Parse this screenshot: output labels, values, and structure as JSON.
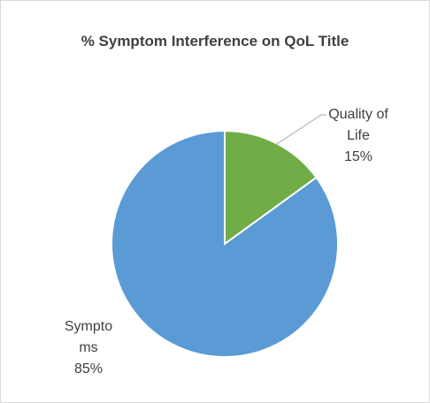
{
  "chart_data": {
    "type": "pie",
    "title": "% Symptom Interference on QoL Title",
    "categories": [
      "Quality of Life",
      "Symptoms"
    ],
    "values": [
      15,
      85
    ],
    "value_labels": [
      "15%",
      "85%"
    ],
    "colors": [
      "#70ad47",
      "#5b9bd5"
    ]
  }
}
